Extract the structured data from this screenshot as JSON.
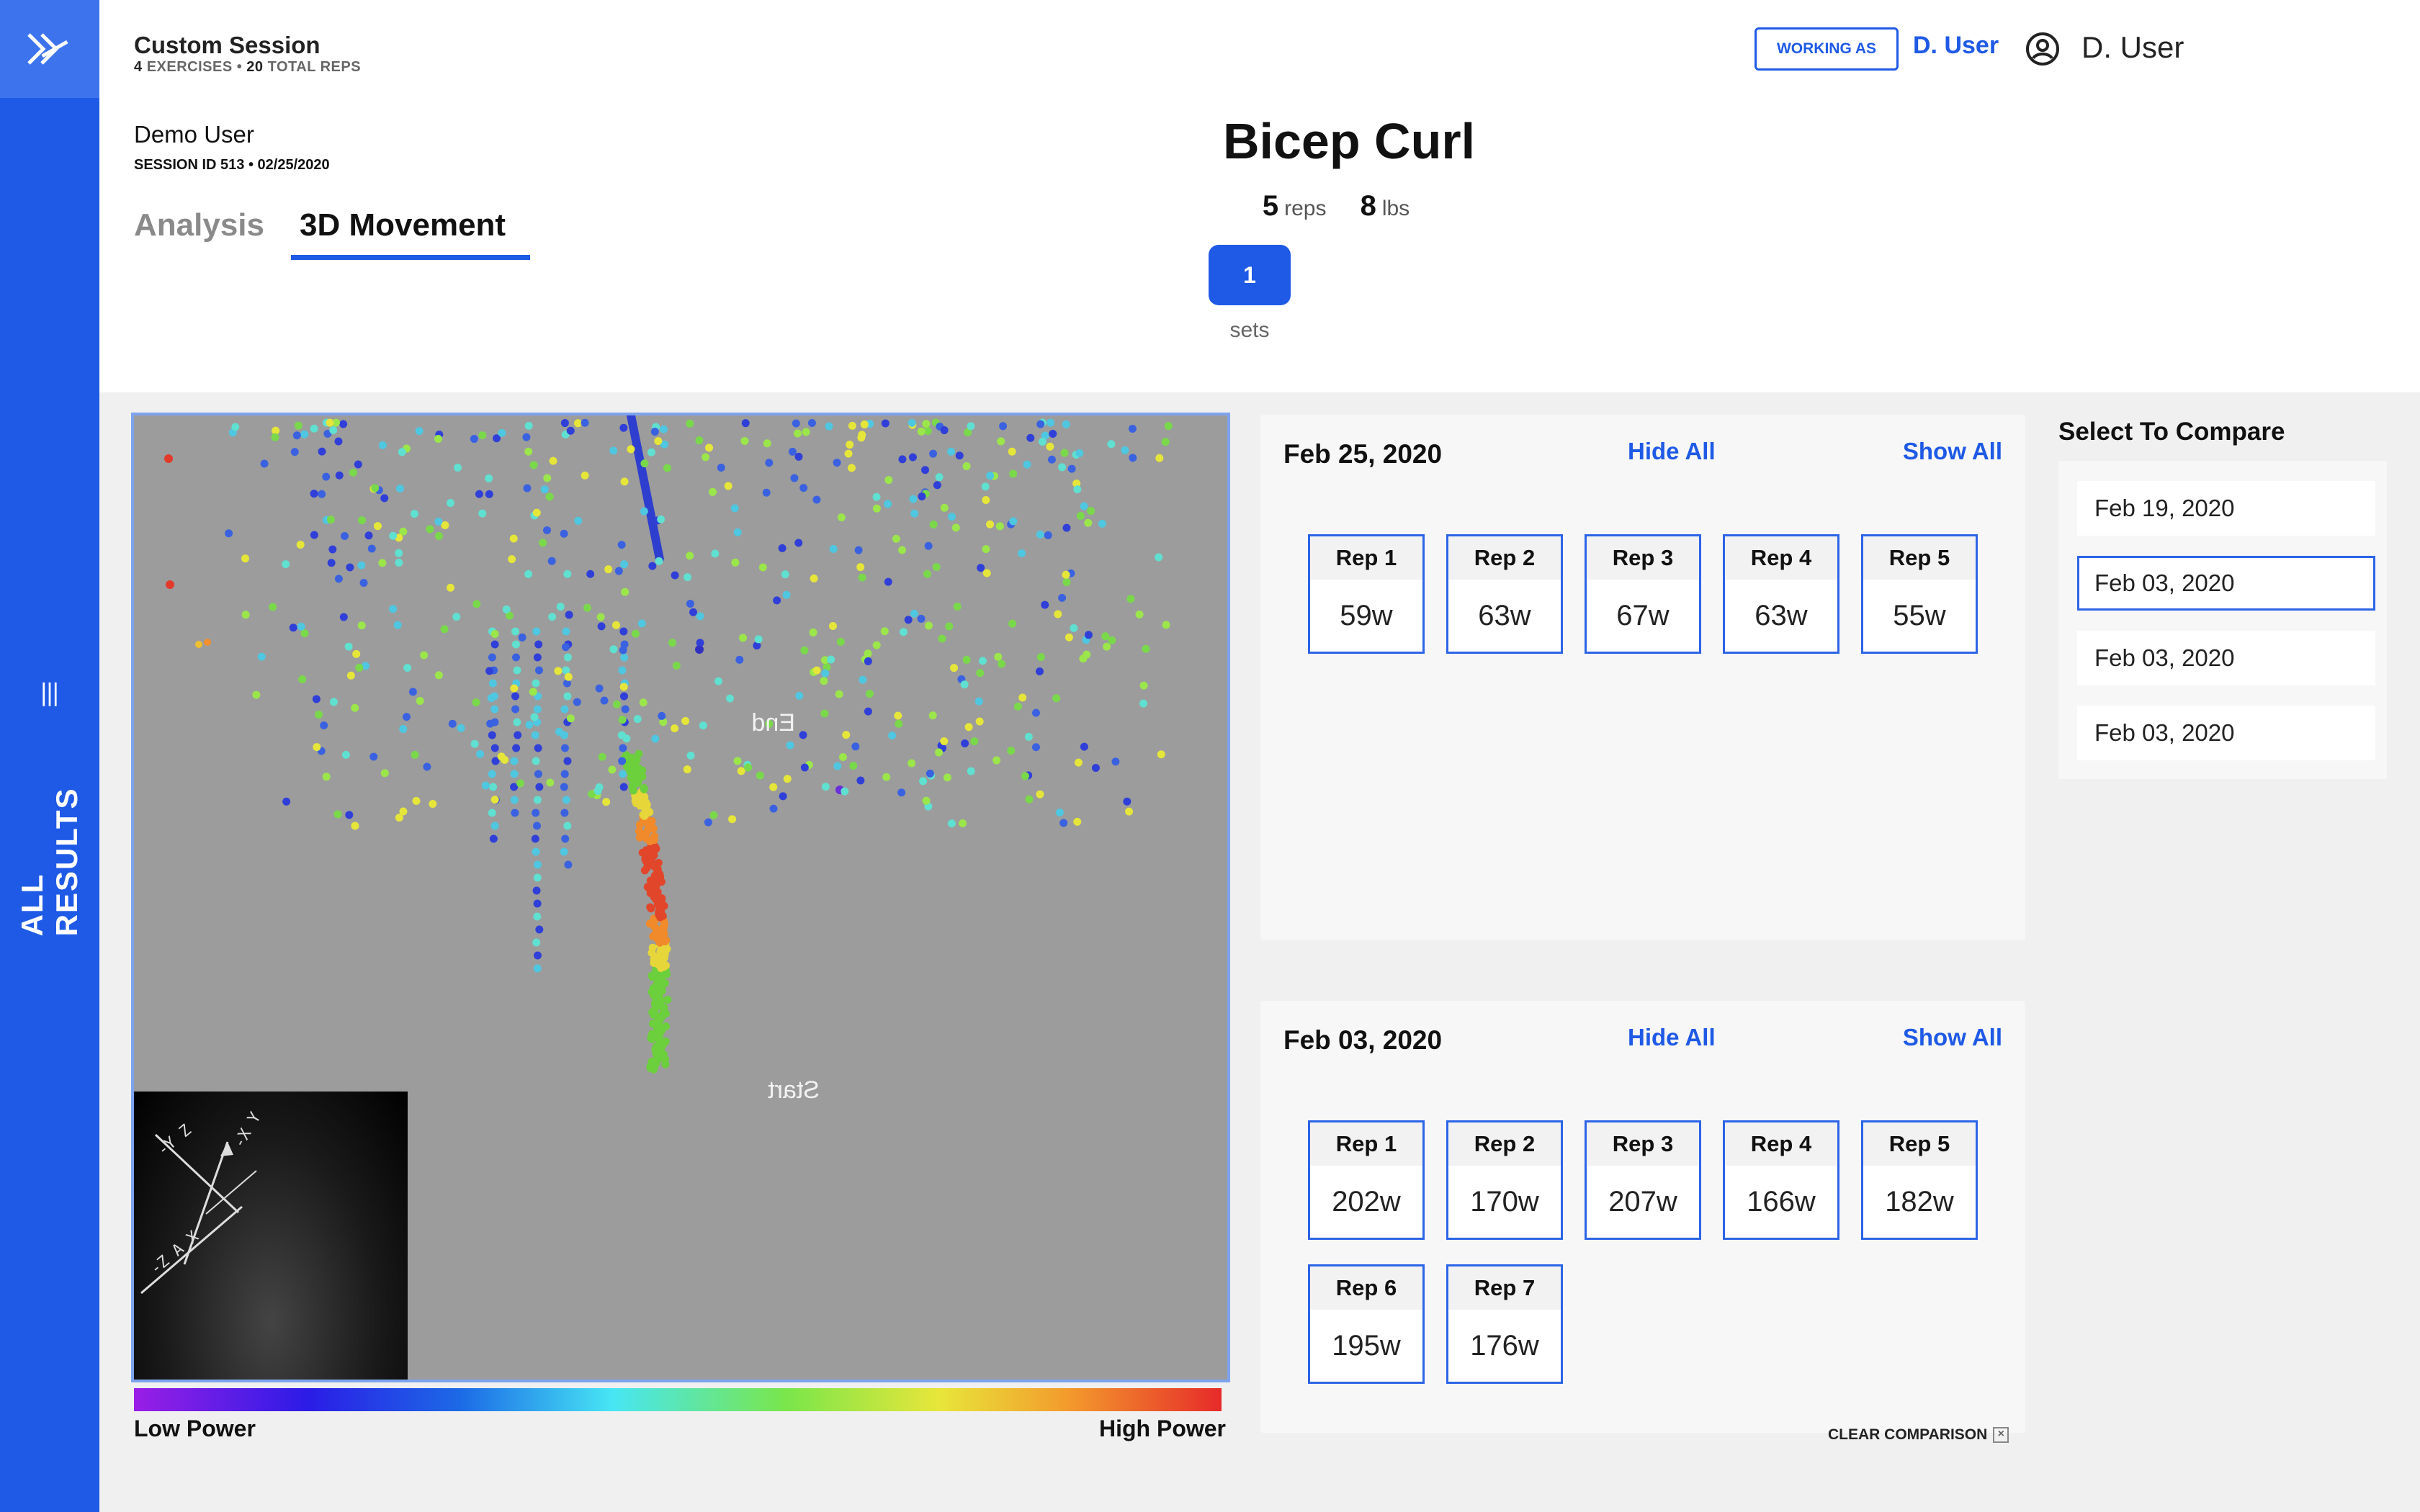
{
  "sidebar": {
    "label": "ALL RESULTS"
  },
  "header": {
    "session_title": "Custom Session",
    "exercises_count": "4",
    "exercises_label": "EXERCISES •",
    "reps_count": "20",
    "reps_label": "TOTAL REPS",
    "user_name": "Demo User",
    "session_id": "SESSION ID 513 • 02/25/2020",
    "tabs": [
      {
        "label": "Analysis"
      },
      {
        "label": "3D Movement"
      }
    ],
    "working_as_label": "WORKING AS",
    "working_as_user": "D. User",
    "account_name": "D. User"
  },
  "exercise": {
    "title": "Bicep Curl",
    "reps_value": "5",
    "reps_unit": "reps",
    "weight_value": "8",
    "weight_unit": "lbs",
    "set_number": "1",
    "sets_label": "sets"
  },
  "viewer": {
    "end_label": "End",
    "start_label": "Start",
    "low_power_label": "Low Power",
    "high_power_label": "High Power",
    "gradient_colors": [
      "#9a1ee6",
      "#2b1ce6",
      "#1c6ae6",
      "#47e6f4",
      "#7ae64a",
      "#e8e63a",
      "#f39a2c",
      "#e62a2a"
    ]
  },
  "sessions": [
    {
      "date": "Feb 25, 2020",
      "hide_all": "Hide All",
      "show_all": "Show All",
      "reps": [
        {
          "label": "Rep 1",
          "value": "59w"
        },
        {
          "label": "Rep 2",
          "value": "63w"
        },
        {
          "label": "Rep 3",
          "value": "67w"
        },
        {
          "label": "Rep 4",
          "value": "63w"
        },
        {
          "label": "Rep 5",
          "value": "55w"
        }
      ]
    },
    {
      "date": "Feb 03, 2020",
      "hide_all": "Hide All",
      "show_all": "Show All",
      "reps": [
        {
          "label": "Rep 1",
          "value": "202w"
        },
        {
          "label": "Rep 2",
          "value": "170w"
        },
        {
          "label": "Rep 3",
          "value": "207w"
        },
        {
          "label": "Rep 4",
          "value": "166w"
        },
        {
          "label": "Rep 5",
          "value": "182w"
        },
        {
          "label": "Rep 6",
          "value": "195w"
        },
        {
          "label": "Rep 7",
          "value": "176w"
        }
      ]
    }
  ],
  "compare": {
    "title": "Select To Compare",
    "items": [
      {
        "label": "Feb 19, 2020",
        "selected": false
      },
      {
        "label": "Feb 03, 2020",
        "selected": true
      },
      {
        "label": "Feb 03, 2020",
        "selected": false
      },
      {
        "label": "Feb 03, 2020",
        "selected": false
      }
    ],
    "clear_label": "CLEAR COMPARISON"
  },
  "colors": {
    "accent": "#1f5ae6",
    "sidebar": "#1f5ae6",
    "viewer_bg": "#9c9c9c"
  }
}
